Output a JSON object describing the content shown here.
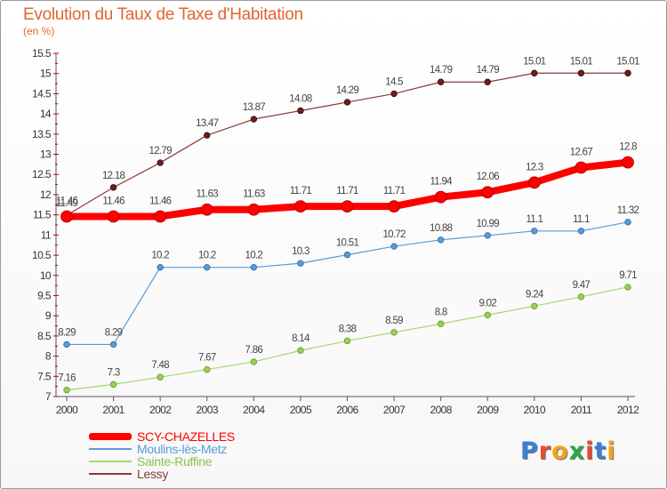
{
  "chart_data": {
    "type": "line",
    "title": "Evolution du Taux de Taxe d'Habitation",
    "subtitle": "(en %)",
    "x": [
      "2000",
      "2001",
      "2002",
      "2003",
      "2004",
      "2005",
      "2006",
      "2007",
      "2008",
      "2009",
      "2010",
      "2011",
      "2012"
    ],
    "ylim": [
      7,
      15.5
    ],
    "yticks": [
      "7",
      "7.5",
      "8",
      "8.5",
      "9",
      "9.5",
      "10",
      "10.5",
      "11",
      "11.5",
      "12",
      "12.5",
      "13",
      "13.5",
      "14",
      "14.5",
      "15",
      "15.5"
    ],
    "grid": false,
    "legend_position": "bottom-left",
    "series": [
      {
        "name": "SCY-CHAZELLES",
        "color": "#ff0000",
        "values": [
          11.46,
          11.46,
          11.46,
          11.63,
          11.63,
          11.71,
          11.71,
          11.71,
          11.94,
          12.06,
          12.3,
          12.67,
          12.8
        ],
        "labels": [
          "11.46",
          "11.46",
          "11.46",
          "11.63",
          "11.63",
          "11.71",
          "11.71",
          "11.71",
          "11.94",
          "12.06",
          "12.3",
          "12.67",
          "12.8"
        ]
      },
      {
        "name": "Moulins-lès-Metz",
        "color": "#5b9bd5",
        "values": [
          8.29,
          8.29,
          10.2,
          10.2,
          10.2,
          10.3,
          10.51,
          10.72,
          10.88,
          10.99,
          11.1,
          11.1,
          11.32
        ],
        "labels": [
          "8.29",
          "8.29",
          "10.2",
          "10.2",
          "10.2",
          "10.3",
          "10.51",
          "10.72",
          "10.88",
          "10.99",
          "11.1",
          "11.1",
          "11.32"
        ]
      },
      {
        "name": "Sainte-Ruffine",
        "color": "#a6d96a",
        "values": [
          7.16,
          7.3,
          7.48,
          7.67,
          7.86,
          8.14,
          8.38,
          8.59,
          8.8,
          9.02,
          9.24,
          9.47,
          9.71
        ],
        "labels": [
          "7.16",
          "7.3",
          "7.48",
          "7.67",
          "7.86",
          "8.14",
          "8.38",
          "8.59",
          "8.8",
          "9.02",
          "9.24",
          "9.47",
          "9.71"
        ]
      },
      {
        "name": "Lessy",
        "color": "#8b3a3a",
        "values": [
          11.49,
          12.18,
          12.79,
          13.47,
          13.87,
          14.08,
          14.29,
          14.5,
          14.79,
          14.79,
          15.01,
          15.01,
          15.01
        ],
        "labels": [
          "11.49",
          "12.18",
          "12.79",
          "13.47",
          "13.87",
          "14.08",
          "14.29",
          "14.5",
          "14.79",
          "14.79",
          "15.01",
          "15.01",
          "15.01"
        ]
      }
    ]
  },
  "logo": {
    "letters": [
      "P",
      "r",
      "o",
      "x",
      "i",
      "t",
      "i"
    ],
    "colors": [
      "#3a7fd5",
      "#e84a2f",
      "#f4a21a",
      "#2aa84a",
      "#e84a2f",
      "#3a7fd5",
      "#f4a21a"
    ]
  }
}
